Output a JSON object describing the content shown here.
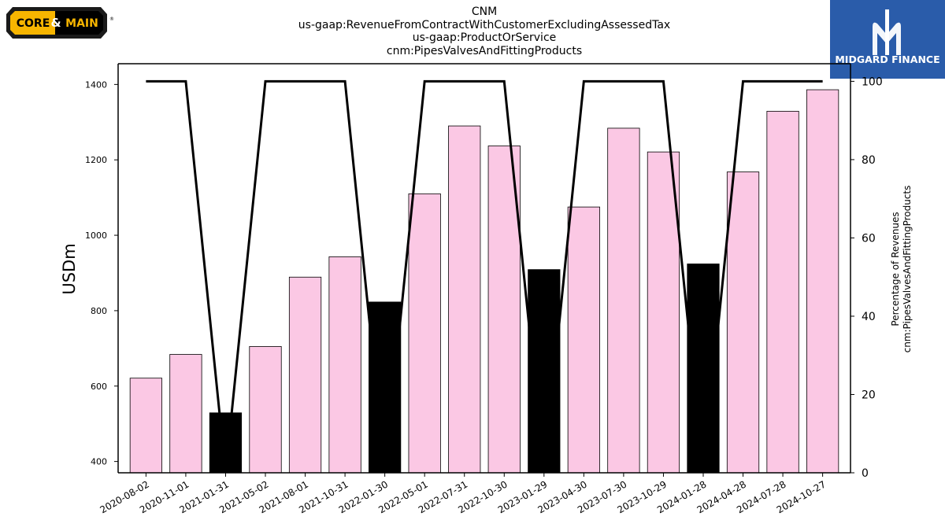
{
  "title_lines": [
    "CNM",
    "us-gaap:RevenueFromContractWithCustomerExcludingAssessedTax",
    "us-gaap:ProductOrService",
    "cnm:PipesValvesAndFittingProducts"
  ],
  "logos": {
    "left": {
      "text_core": "CORE",
      "text_amp": "&",
      "text_main": "MAIN",
      "reg": "®"
    },
    "right": {
      "text": "MIDGARD FINANCE",
      "bg_color": "#2a5caa"
    }
  },
  "chart_data": {
    "type": "bar",
    "categories": [
      "2020-08-02",
      "2020-11-01",
      "2021-01-31",
      "2021-05-02",
      "2021-08-01",
      "2021-10-31",
      "2022-01-30",
      "2022-05-01",
      "2022-07-31",
      "2022-10-30",
      "2023-01-29",
      "2023-04-30",
      "2023-07-30",
      "2023-10-29",
      "2024-01-28",
      "2024-04-28",
      "2024-07-28",
      "2024-10-27"
    ],
    "bar_values": [
      621,
      684,
      529,
      705,
      889,
      943,
      823,
      1110,
      1290,
      1237,
      909,
      1075,
      1284,
      1221,
      924,
      1168,
      1329,
      1386
    ],
    "bar_colors": [
      "#fbc8e4",
      "#fbc8e4",
      "#000000",
      "#fbc8e4",
      "#fbc8e4",
      "#fbc8e4",
      "#000000",
      "#fbc8e4",
      "#fbc8e4",
      "#fbc8e4",
      "#000000",
      "#fbc8e4",
      "#fbc8e4",
      "#fbc8e4",
      "#000000",
      "#fbc8e4",
      "#fbc8e4",
      "#fbc8e4"
    ],
    "line_values": [
      100,
      100,
      0,
      100,
      100,
      100,
      0,
      100,
      100,
      100,
      0,
      100,
      100,
      100,
      0,
      100,
      100,
      100
    ],
    "ylabel": "USDm",
    "y2label_lines": [
      "Percentage of Revenues",
      "cnm:PipesValvesAndFittingProducts"
    ],
    "ylim": [
      370,
      1455
    ],
    "y2lim": [
      0,
      104.5
    ],
    "yticks": [
      400,
      600,
      800,
      1000,
      1200,
      1400
    ],
    "y2ticks": [
      0,
      20,
      40,
      60,
      80,
      100
    ],
    "line_color": "#000000",
    "grid": false
  }
}
